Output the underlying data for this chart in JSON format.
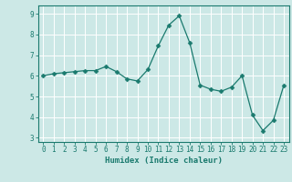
{
  "x": [
    0,
    1,
    2,
    3,
    4,
    5,
    6,
    7,
    8,
    9,
    10,
    11,
    12,
    13,
    14,
    15,
    16,
    17,
    18,
    19,
    20,
    21,
    22,
    23
  ],
  "y": [
    6.0,
    6.1,
    6.15,
    6.2,
    6.25,
    6.25,
    6.45,
    6.2,
    5.85,
    5.75,
    6.3,
    7.45,
    8.45,
    8.9,
    7.6,
    5.55,
    5.35,
    5.25,
    5.45,
    6.0,
    4.1,
    3.35,
    3.85,
    5.55
  ],
  "line_color": "#1a7a6e",
  "marker": "D",
  "marker_size": 2.5,
  "bg_color": "#cce8e6",
  "grid_color": "#ffffff",
  "xlabel": "Humidex (Indice chaleur)",
  "xlim": [
    -0.5,
    23.5
  ],
  "ylim": [
    2.8,
    9.4
  ],
  "yticks": [
    3,
    4,
    5,
    6,
    7,
    8,
    9
  ],
  "xticks": [
    0,
    1,
    2,
    3,
    4,
    5,
    6,
    7,
    8,
    9,
    10,
    11,
    12,
    13,
    14,
    15,
    16,
    17,
    18,
    19,
    20,
    21,
    22,
    23
  ],
  "tick_color": "#1a7a6e",
  "axis_color": "#1a7a6e",
  "font_color": "#1a7a6e",
  "xlabel_fontsize": 6.5,
  "tick_fontsize": 5.5
}
